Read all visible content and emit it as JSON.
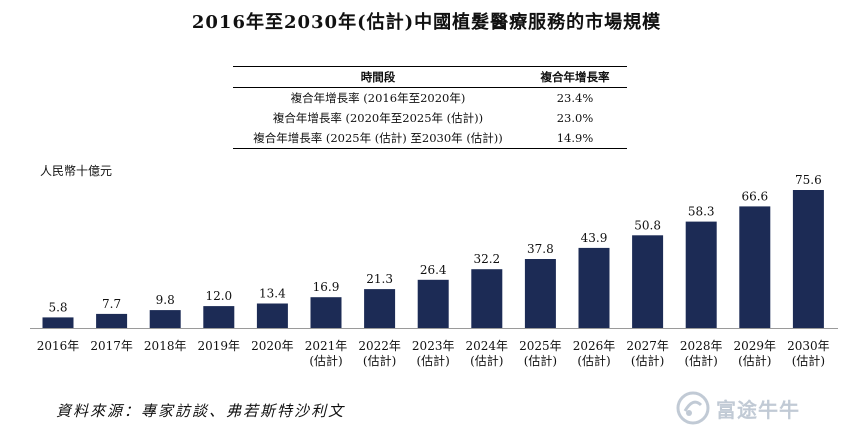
{
  "title": "2016年至2030年(估計)中國植髮醫療服務的市場規模",
  "cagr_table": {
    "headers": [
      "時間段",
      "複合年增長率"
    ],
    "rows": [
      {
        "period": "複合年增長率 (2016年至2020年)",
        "value": "23.4%"
      },
      {
        "period": "複合年增長率 (2020年至2025年 (估計))",
        "value": "23.0%"
      },
      {
        "period": "複合年增長率 (2025年 (估計) 至2030年 (估計))",
        "value": "14.9%"
      }
    ]
  },
  "unit_label": "人民幣十億元",
  "chart_data": {
    "type": "bar",
    "categories": [
      [
        "2016年"
      ],
      [
        "2017年"
      ],
      [
        "2018年"
      ],
      [
        "2019年"
      ],
      [
        "2020年"
      ],
      [
        "2021年",
        "(估計)"
      ],
      [
        "2022年",
        "(估計)"
      ],
      [
        "2023年",
        "(估計)"
      ],
      [
        "2024年",
        "(估計)"
      ],
      [
        "2025年",
        "(估計)"
      ],
      [
        "2026年",
        "(估計)"
      ],
      [
        "2027年",
        "(估計)"
      ],
      [
        "2028年",
        "(估計)"
      ],
      [
        "2029年",
        "(估計)"
      ],
      [
        "2030年",
        "(估計)"
      ]
    ],
    "values": [
      5.8,
      7.7,
      9.8,
      12.0,
      13.4,
      16.9,
      21.3,
      26.4,
      32.2,
      37.8,
      43.9,
      50.8,
      58.3,
      66.6,
      75.6
    ],
    "value_labels": [
      "5.8",
      "7.7",
      "9.8",
      "12.0",
      "13.4",
      "16.9",
      "21.3",
      "26.4",
      "32.2",
      "37.8",
      "43.9",
      "50.8",
      "58.3",
      "66.6",
      "75.6"
    ],
    "ylim": [
      0,
      75.6
    ],
    "bar_color": "#1c2b55",
    "grid": false,
    "legend": "none"
  },
  "source": "資料來源：專家訪談、弗若斯特沙利文",
  "watermark": {
    "text": "富途牛牛",
    "icon": "futu-logo-icon"
  }
}
